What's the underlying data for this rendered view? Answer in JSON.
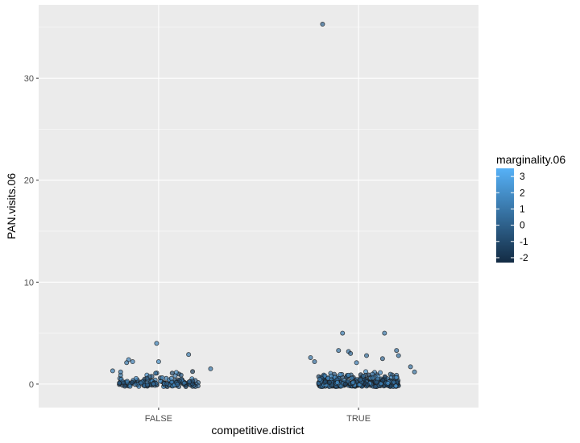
{
  "chart_data": {
    "type": "scatter",
    "xlabel": "competitive.district",
    "ylabel": "PAN.visits.06",
    "categories": [
      "FALSE",
      "TRUE"
    ],
    "y_ticks": [
      0,
      10,
      20,
      30
    ],
    "ylim": [
      -2.3,
      37.2
    ],
    "jitter_width": 0.4,
    "grid": true,
    "background": "#ebebeb",
    "grid_color": "#ffffff",
    "legend": {
      "title": "marginality.06",
      "position": "right",
      "ticks": [
        3,
        2,
        1,
        0,
        -1,
        -2
      ],
      "tick_labels": [
        "3",
        "2",
        "1",
        "0",
        "-1",
        "-2"
      ],
      "range": [
        -2.3,
        3.5
      ],
      "low_color": "#132b43",
      "high_color": "#56b1f7"
    },
    "notable_points": [
      {
        "category": "TRUE",
        "x_offset": -0.18,
        "y": 35.3,
        "color_value": 0.3
      },
      {
        "category": "TRUE",
        "x_offset": -0.08,
        "y": 5.0,
        "color_value": 1.2
      },
      {
        "category": "TRUE",
        "x_offset": 0.13,
        "y": 5.0,
        "color_value": 1.0
      },
      {
        "category": "FALSE",
        "x_offset": -0.01,
        "y": 4.0,
        "color_value": 1.5
      },
      {
        "category": "TRUE",
        "x_offset": -0.1,
        "y": 3.3,
        "color_value": 0.8
      },
      {
        "category": "TRUE",
        "x_offset": 0.19,
        "y": 3.3,
        "color_value": 0.6
      },
      {
        "category": "TRUE",
        "x_offset": -0.05,
        "y": 3.2,
        "color_value": 0.9
      },
      {
        "category": "TRUE",
        "x_offset": -0.04,
        "y": 3.0,
        "color_value": 0.4
      },
      {
        "category": "FALSE",
        "x_offset": 0.15,
        "y": 2.9,
        "color_value": 1.1
      },
      {
        "category": "TRUE",
        "x_offset": 0.2,
        "y": 2.8,
        "color_value": 0.7
      },
      {
        "category": "TRUE",
        "x_offset": 0.04,
        "y": 2.8,
        "color_value": 0.5
      },
      {
        "category": "TRUE",
        "x_offset": -0.24,
        "y": 2.6,
        "color_value": 0.9
      },
      {
        "category": "TRUE",
        "x_offset": 0.12,
        "y": 2.5,
        "color_value": 0.2
      },
      {
        "category": "FALSE",
        "x_offset": -0.15,
        "y": 2.4,
        "color_value": 1.6
      },
      {
        "category": "FALSE",
        "x_offset": -0.13,
        "y": 2.2,
        "color_value": 1.4
      },
      {
        "category": "FALSE",
        "x_offset": -0.16,
        "y": 2.1,
        "color_value": 1.0
      },
      {
        "category": "FALSE",
        "x_offset": 0.0,
        "y": 2.2,
        "color_value": 1.8
      },
      {
        "category": "TRUE",
        "x_offset": -0.22,
        "y": 2.2,
        "color_value": 0.6
      },
      {
        "category": "TRUE",
        "x_offset": -0.01,
        "y": 2.1,
        "color_value": 1.3
      },
      {
        "category": "FALSE",
        "x_offset": -0.23,
        "y": 1.3,
        "color_value": 1.2
      },
      {
        "category": "FALSE",
        "x_offset": -0.19,
        "y": 1.2,
        "color_value": 0.9
      },
      {
        "category": "FALSE",
        "x_offset": 0.26,
        "y": 1.5,
        "color_value": 1.0
      },
      {
        "category": "TRUE",
        "x_offset": 0.26,
        "y": 1.7,
        "color_value": 0.7
      },
      {
        "category": "TRUE",
        "x_offset": 0.28,
        "y": 1.2,
        "color_value": 0.8
      }
    ],
    "bulk_points": {
      "count_per_category": [
        170,
        420
      ],
      "y_levels": [
        0,
        0.1,
        0.25,
        0.5,
        0.75,
        1.0
      ],
      "y_level_weights": [
        0.55,
        0.15,
        0.12,
        0.09,
        0.06,
        0.03
      ],
      "color_range": [
        -1.5,
        2.5
      ]
    }
  }
}
